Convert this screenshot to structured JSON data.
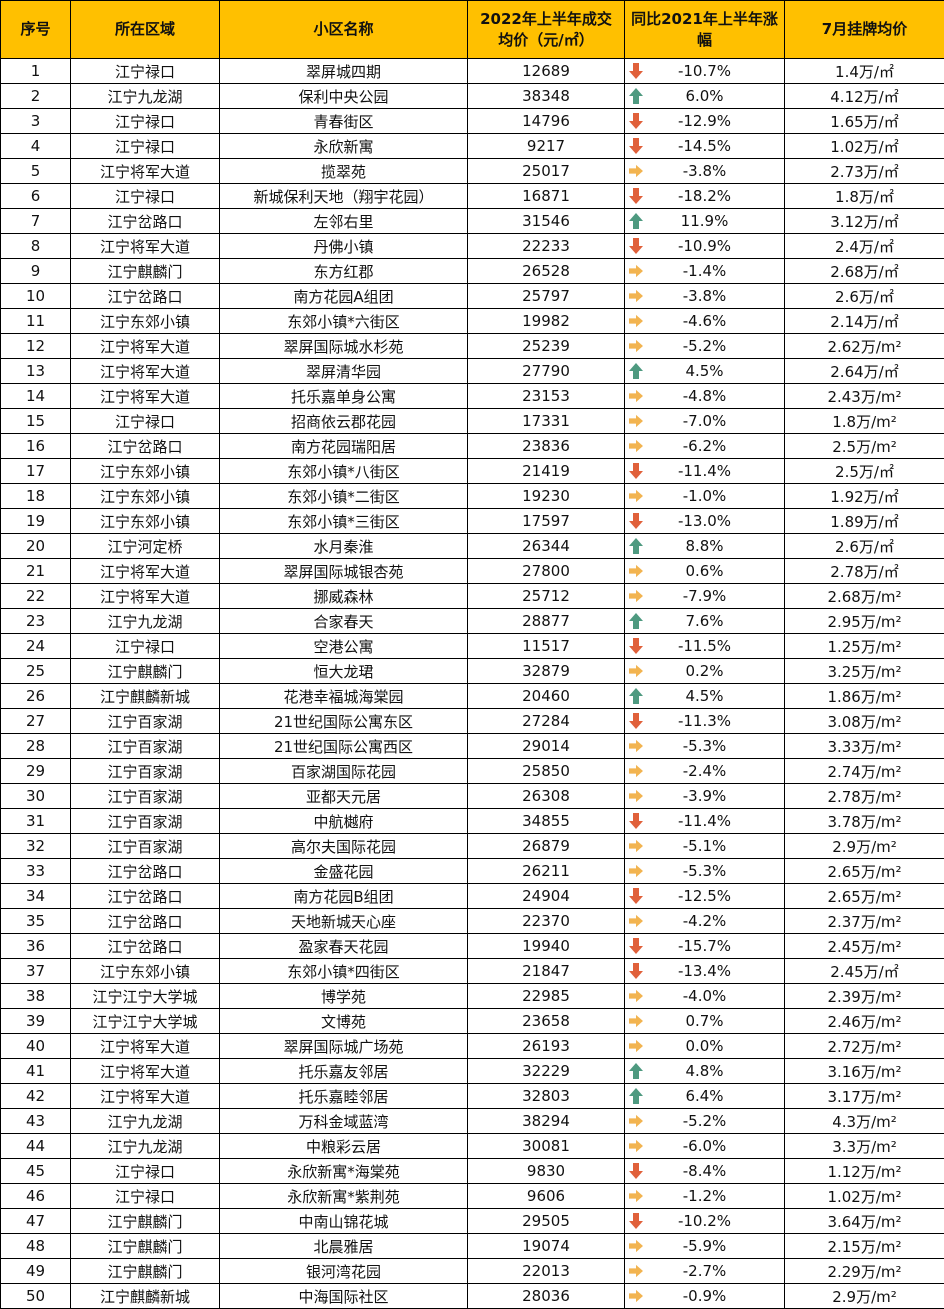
{
  "headers": [
    "序号",
    "所在区域",
    "小区名称",
    "2022年上半年成交均价（元/㎡）",
    "同比2021年上半年涨幅",
    "7月挂牌均价"
  ],
  "colors": {
    "header_bg": "#FFC000",
    "down": "#E0603A",
    "up": "#4E9A80",
    "flat": "#F2B450"
  },
  "rows": [
    [
      "1",
      "江宁禄口",
      "翠屏城四期",
      "12689",
      "down",
      "-10.7%",
      "1.4万/㎡"
    ],
    [
      "2",
      "江宁九龙湖",
      "保利中央公园",
      "38348",
      "up",
      "6.0%",
      "4.12万/㎡"
    ],
    [
      "3",
      "江宁禄口",
      "青春街区",
      "14796",
      "down",
      "-12.9%",
      "1.65万/㎡"
    ],
    [
      "4",
      "江宁禄口",
      "永欣新寓",
      "9217",
      "down",
      "-14.5%",
      "1.02万/㎡"
    ],
    [
      "5",
      "江宁将军大道",
      "揽翠苑",
      "25017",
      "flat",
      "-3.8%",
      "2.73万/㎡"
    ],
    [
      "6",
      "江宁禄口",
      "新城保利天地（翔宇花园）",
      "16871",
      "down",
      "-18.2%",
      "1.8万/㎡"
    ],
    [
      "7",
      "江宁岔路口",
      "左邻右里",
      "31546",
      "up",
      "11.9%",
      "3.12万/㎡"
    ],
    [
      "8",
      "江宁将军大道",
      "丹佛小镇",
      "22233",
      "down",
      "-10.9%",
      "2.4万/㎡"
    ],
    [
      "9",
      "江宁麒麟门",
      "东方红郡",
      "26528",
      "flat",
      "-1.4%",
      "2.68万/㎡"
    ],
    [
      "10",
      "江宁岔路口",
      "南方花园A组团",
      "25797",
      "flat",
      "-3.8%",
      "2.6万/㎡"
    ],
    [
      "11",
      "江宁东郊小镇",
      "东郊小镇*六街区",
      "19982",
      "flat",
      "-4.6%",
      "2.14万/㎡"
    ],
    [
      "12",
      "江宁将军大道",
      "翠屏国际城水杉苑",
      "25239",
      "flat",
      "-5.2%",
      "2.62万/m²"
    ],
    [
      "13",
      "江宁将军大道",
      "翠屏清华园",
      "27790",
      "up",
      "4.5%",
      "2.64万/㎡"
    ],
    [
      "14",
      "江宁将军大道",
      "托乐嘉单身公寓",
      "23153",
      "flat",
      "-4.8%",
      "2.43万/m²"
    ],
    [
      "15",
      "江宁禄口",
      "招商依云郡花园",
      "17331",
      "flat",
      "-7.0%",
      "1.8万/m²"
    ],
    [
      "16",
      "江宁岔路口",
      "南方花园瑞阳居",
      "23836",
      "flat",
      "-6.2%",
      "2.5万/m²"
    ],
    [
      "17",
      "江宁东郊小镇",
      "东郊小镇*八街区",
      "21419",
      "down",
      "-11.4%",
      "2.5万/㎡"
    ],
    [
      "18",
      "江宁东郊小镇",
      "东郊小镇*二街区",
      "19230",
      "flat",
      "-1.0%",
      "1.92万/㎡"
    ],
    [
      "19",
      "江宁东郊小镇",
      "东郊小镇*三街区",
      "17597",
      "down",
      "-13.0%",
      "1.89万/㎡"
    ],
    [
      "20",
      "江宁河定桥",
      "水月秦淮",
      "26344",
      "up",
      "8.8%",
      "2.6万/㎡"
    ],
    [
      "21",
      "江宁将军大道",
      "翠屏国际城银杏苑",
      "27800",
      "flat",
      "0.6%",
      "2.78万/㎡"
    ],
    [
      "22",
      "江宁将军大道",
      "挪威森林",
      "25712",
      "flat",
      "-7.9%",
      "2.68万/m²"
    ],
    [
      "23",
      "江宁九龙湖",
      "合家春天",
      "28877",
      "up",
      "7.6%",
      "2.95万/m²"
    ],
    [
      "24",
      "江宁禄口",
      "空港公寓",
      "11517",
      "down",
      "-11.5%",
      "1.25万/m²"
    ],
    [
      "25",
      "江宁麒麟门",
      "恒大龙珺",
      "32879",
      "flat",
      "0.2%",
      "3.25万/m²"
    ],
    [
      "26",
      "江宁麒麟新城",
      "花港幸福城海棠园",
      "20460",
      "up",
      "4.5%",
      "1.86万/m²"
    ],
    [
      "27",
      "江宁百家湖",
      "21世纪国际公寓东区",
      "27284",
      "down",
      "-11.3%",
      "3.08万/m²"
    ],
    [
      "28",
      "江宁百家湖",
      "21世纪国际公寓西区",
      "29014",
      "flat",
      "-5.3%",
      "3.33万/m²"
    ],
    [
      "29",
      "江宁百家湖",
      "百家湖国际花园",
      "25850",
      "flat",
      "-2.4%",
      "2.74万/m²"
    ],
    [
      "30",
      "江宁百家湖",
      "亚都天元居",
      "26308",
      "flat",
      "-3.9%",
      "2.78万/m²"
    ],
    [
      "31",
      "江宁百家湖",
      "中航樾府",
      "34855",
      "down",
      "-11.4%",
      "3.78万/m²"
    ],
    [
      "32",
      "江宁百家湖",
      "高尔夫国际花园",
      "26879",
      "flat",
      "-5.1%",
      "2.9万/m²"
    ],
    [
      "33",
      "江宁岔路口",
      "金盛花园",
      "26211",
      "flat",
      "-5.3%",
      "2.65万/m²"
    ],
    [
      "34",
      "江宁岔路口",
      "南方花园B组团",
      "24904",
      "down",
      "-12.5%",
      "2.65万/m²"
    ],
    [
      "35",
      "江宁岔路口",
      "天地新城天心座",
      "22370",
      "flat",
      "-4.2%",
      "2.37万/m²"
    ],
    [
      "36",
      "江宁岔路口",
      "盈家春天花园",
      "19940",
      "down",
      "-15.7%",
      "2.45万/m²"
    ],
    [
      "37",
      "江宁东郊小镇",
      "东郊小镇*四街区",
      "21847",
      "down",
      "-13.4%",
      "2.45万/㎡"
    ],
    [
      "38",
      "江宁江宁大学城",
      "博学苑",
      "22985",
      "flat",
      "-4.0%",
      "2.39万/m²"
    ],
    [
      "39",
      "江宁江宁大学城",
      "文博苑",
      "23658",
      "flat",
      "0.7%",
      "2.46万/m²"
    ],
    [
      "40",
      "江宁将军大道",
      "翠屏国际城广场苑",
      "26193",
      "flat",
      "0.0%",
      "2.72万/m²"
    ],
    [
      "41",
      "江宁将军大道",
      "托乐嘉友邻居",
      "32229",
      "up",
      "4.8%",
      "3.16万/m²"
    ],
    [
      "42",
      "江宁将军大道",
      "托乐嘉睦邻居",
      "32803",
      "up",
      "6.4%",
      "3.17万/m²"
    ],
    [
      "43",
      "江宁九龙湖",
      "万科金域蓝湾",
      "38294",
      "flat",
      "-5.2%",
      "4.3万/m²"
    ],
    [
      "44",
      "江宁九龙湖",
      "中粮彩云居",
      "30081",
      "flat",
      "-6.0%",
      "3.3万/m²"
    ],
    [
      "45",
      "江宁禄口",
      "永欣新寓*海棠苑",
      "9830",
      "down",
      "-8.4%",
      "1.12万/m²"
    ],
    [
      "46",
      "江宁禄口",
      "永欣新寓*紫荆苑",
      "9606",
      "flat",
      "-1.2%",
      "1.02万/m²"
    ],
    [
      "47",
      "江宁麒麟门",
      "中南山锦花城",
      "29505",
      "down",
      "-10.2%",
      "3.64万/m²"
    ],
    [
      "48",
      "江宁麒麟门",
      "北晨雅居",
      "19074",
      "flat",
      "-5.9%",
      "2.15万/m²"
    ],
    [
      "49",
      "江宁麒麟门",
      "银河湾花园",
      "22013",
      "flat",
      "-2.7%",
      "2.29万/m²"
    ],
    [
      "50",
      "江宁麒麟新城",
      "中海国际社区",
      "28036",
      "flat",
      "-0.9%",
      "2.9万/m²"
    ]
  ]
}
